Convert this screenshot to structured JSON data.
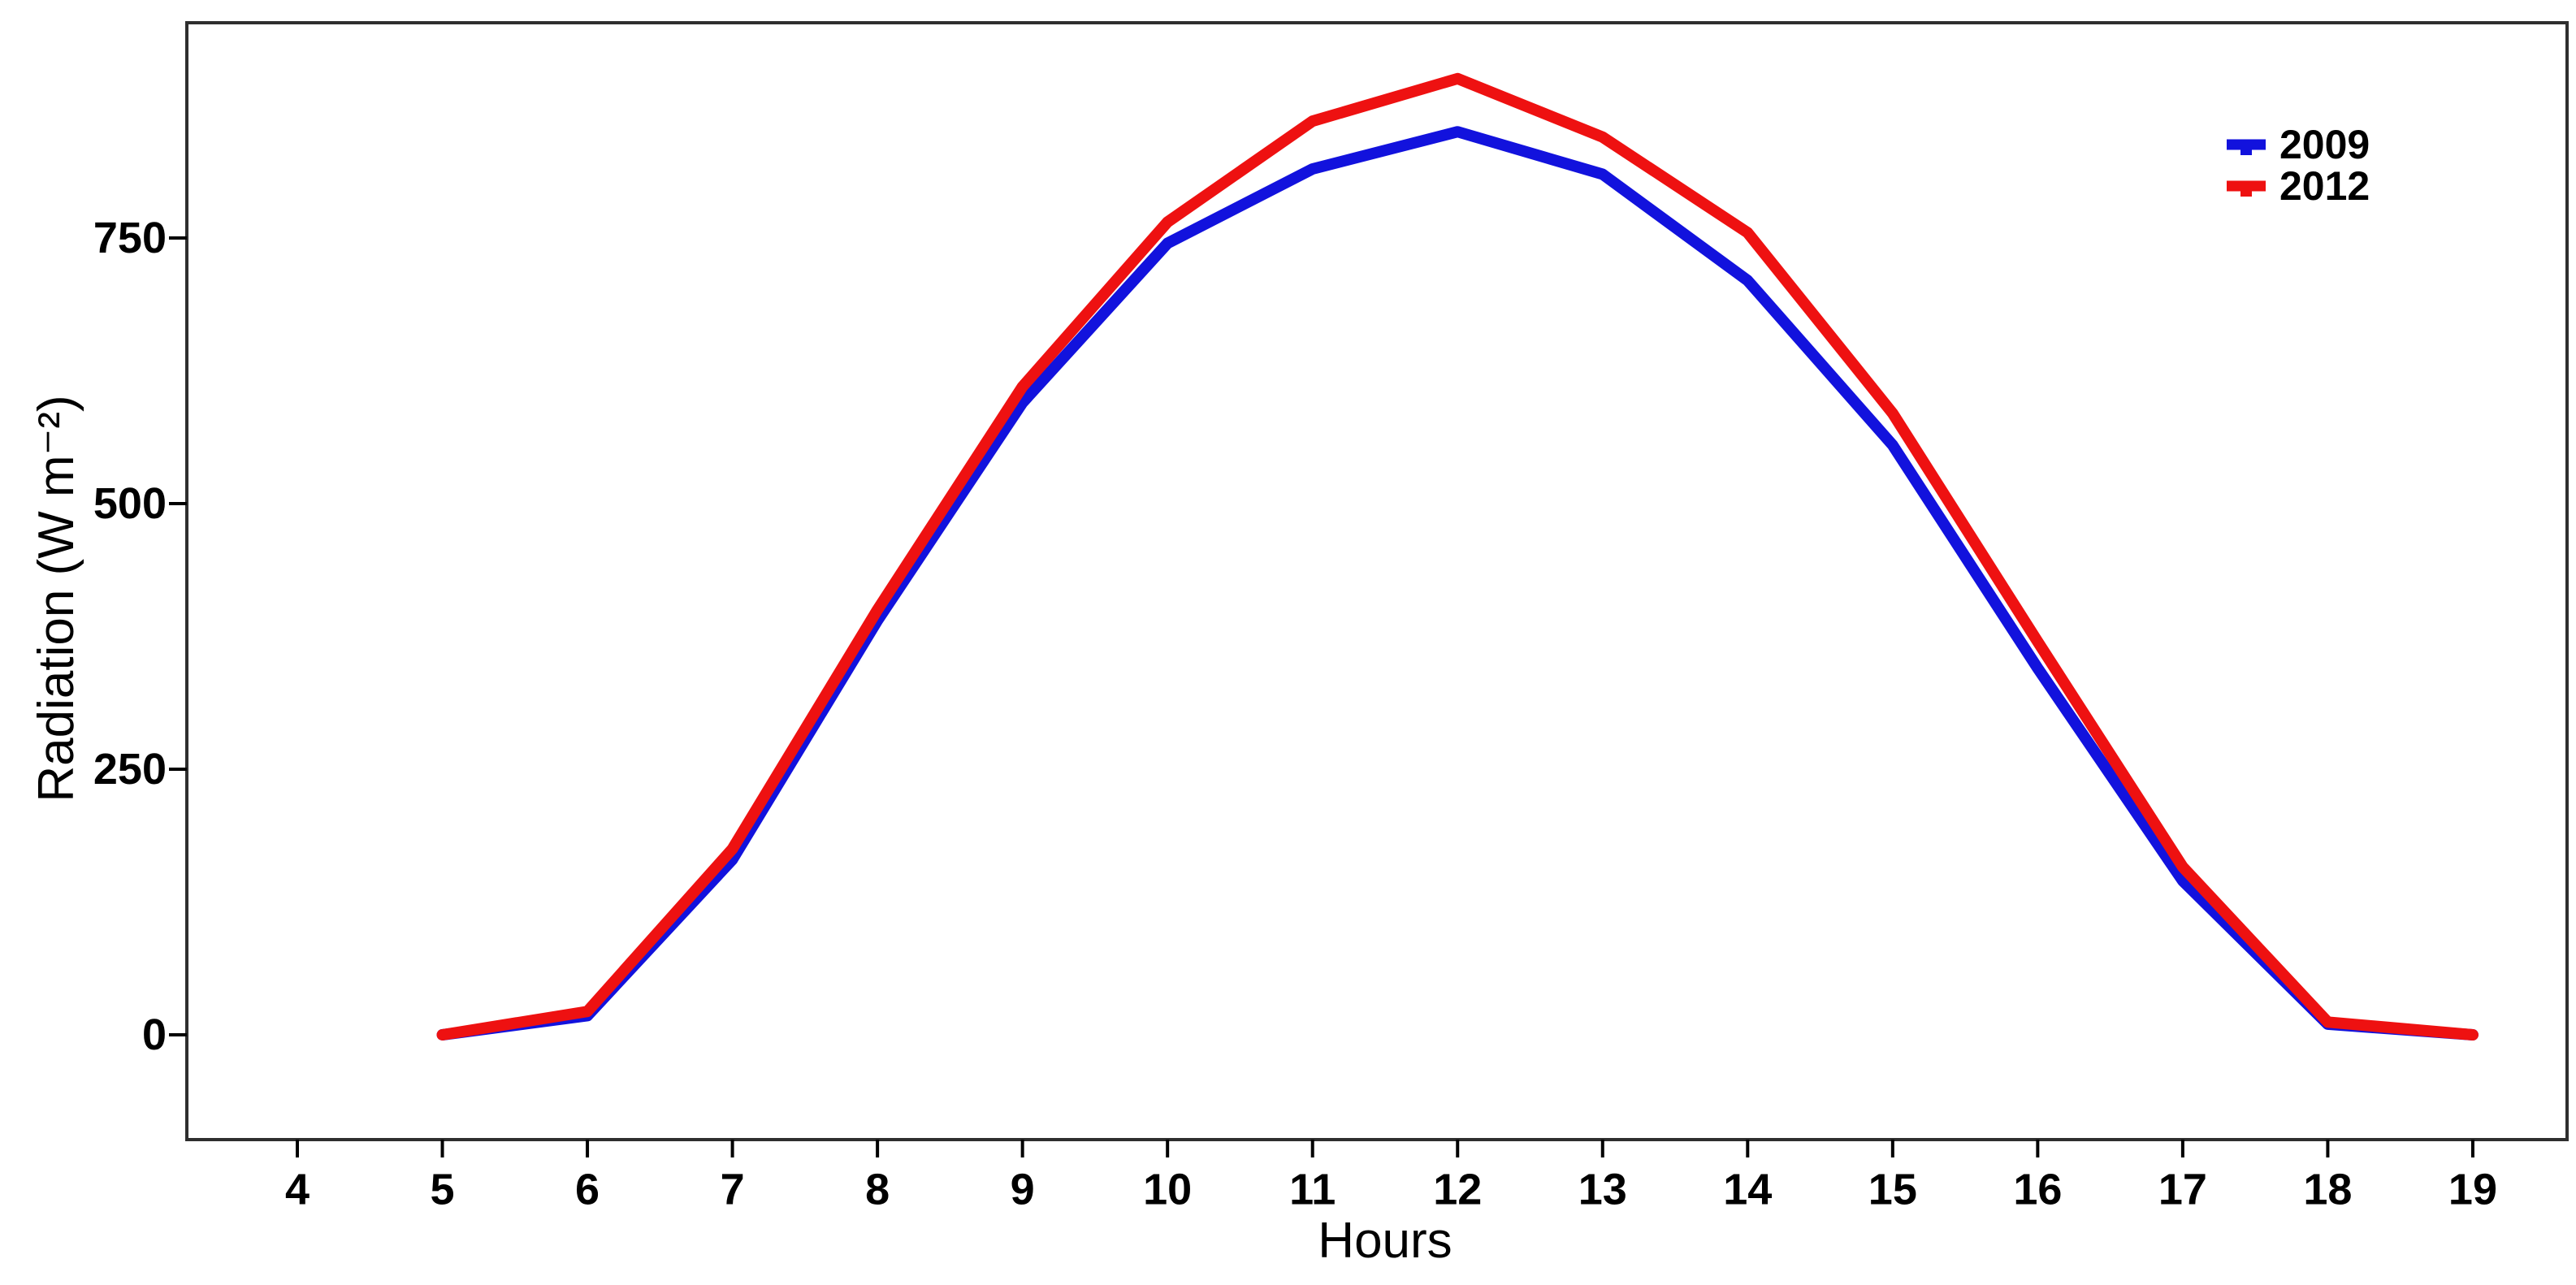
{
  "chart_data": {
    "type": "line",
    "title": "",
    "xlabel": "Hours",
    "ylabel": "Radiation (W m⁻²)",
    "x": [
      5,
      6,
      7,
      8,
      9,
      10,
      11,
      12,
      13,
      14,
      15,
      16,
      17,
      18,
      19
    ],
    "series": [
      {
        "name": "2009",
        "color": "#1212dd",
        "values": [
          0,
          18,
          165,
          390,
          595,
          745,
          815,
          850,
          810,
          710,
          555,
          345,
          145,
          10,
          0
        ]
      },
      {
        "name": "2012",
        "color": "#ee1111",
        "values": [
          0,
          22,
          175,
          400,
          610,
          765,
          860,
          900,
          845,
          755,
          585,
          370,
          158,
          12,
          0
        ]
      }
    ],
    "x_ticks": [
      4,
      5,
      6,
      7,
      8,
      9,
      10,
      11,
      12,
      13,
      14,
      15,
      16,
      17,
      18,
      19
    ],
    "y_ticks": [
      0,
      250,
      500,
      750
    ],
    "xlim": [
      3.2,
      19.7
    ],
    "ylim": [
      -100,
      955
    ],
    "grid": false,
    "legend_position": "top-right",
    "axis_color": "#2e2e2e",
    "text_color": "#000000",
    "background_color": "#ffffff"
  }
}
